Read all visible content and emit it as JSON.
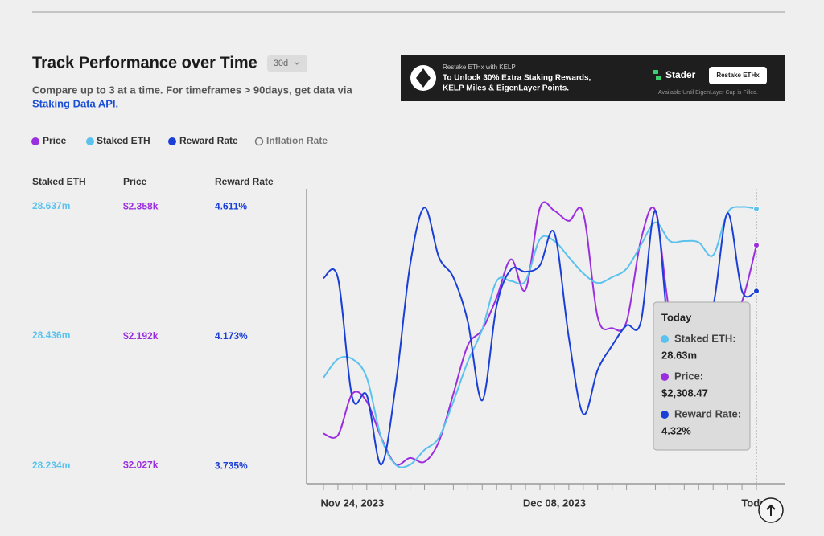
{
  "header": {
    "title": "Track Performance over Time",
    "timeframe": "30d",
    "subtitle": "Compare up to 3 at a time. For timeframes > 90days, get data via",
    "link": "Staking Data API."
  },
  "banner": {
    "small": "Restake ETHx with KELP",
    "line1": "To Unlock 30% Extra Staking Rewards,",
    "line2": "KELP Miles & EigenLayer Points.",
    "brand": "Stader",
    "button": "Restake ETHx",
    "note": "Available Until EigenLayer Cap is Filled."
  },
  "legend": {
    "inactive": "Inflation Rate"
  },
  "tooltip": {
    "title": "Today",
    "items": [
      {
        "label": "Staked ETH:",
        "value": "28.63m"
      },
      {
        "label": "Price:",
        "value": "$2,308.47"
      },
      {
        "label": "Reward Rate:",
        "value": "4.32%"
      }
    ]
  },
  "chart_data": {
    "type": "line",
    "categories": [
      null,
      null,
      "Nov 24, 2023",
      null,
      null,
      null,
      null,
      null,
      null,
      null,
      null,
      null,
      null,
      null,
      null,
      null,
      "Dec 08, 2023",
      null,
      null,
      null,
      null,
      null,
      null,
      null,
      null,
      null,
      null,
      null,
      null,
      null,
      "Today"
    ],
    "series": [
      {
        "name": "Price",
        "color": "#9b2fe0",
        "ylim": [
          2.006,
          2.381
        ],
        "yticks": [
          {
            "value": 2.358,
            "label": "$2.358k"
          },
          {
            "value": 2.192,
            "label": "$2.192k"
          },
          {
            "value": 2.027,
            "label": "$2.027k"
          }
        ],
        "values": [
          2.068,
          2.066,
          2.119,
          2.109,
          2.063,
          2.029,
          2.037,
          2.032,
          2.058,
          2.119,
          2.181,
          2.201,
          2.242,
          2.291,
          2.252,
          2.357,
          2.353,
          2.34,
          2.35,
          2.217,
          2.203,
          2.211,
          2.316,
          2.353,
          2.222,
          2.211,
          2.211,
          2.217,
          2.211,
          2.237,
          2.309
        ]
      },
      {
        "name": "Staked ETH",
        "color": "#5bc2ee",
        "ylim": [
          28.209,
          28.664
        ],
        "yticks": [
          {
            "value": 28.637,
            "label": "28.637m"
          },
          {
            "value": 28.436,
            "label": "28.436m"
          },
          {
            "value": 28.234,
            "label": "28.234m"
          }
        ],
        "values": [
          28.371,
          28.4,
          28.4,
          28.371,
          28.278,
          28.236,
          28.236,
          28.259,
          28.278,
          28.334,
          28.396,
          28.446,
          28.521,
          28.521,
          28.521,
          28.586,
          28.583,
          28.558,
          28.533,
          28.518,
          28.527,
          28.54,
          28.577,
          28.612,
          28.583,
          28.583,
          28.581,
          28.561,
          28.627,
          28.636,
          28.633
        ]
      },
      {
        "name": "Reward Rate",
        "color": "#1a3fd6",
        "ylim": [
          3.681,
          4.671
        ],
        "yticks": [
          {
            "value": 4.611,
            "label": "4.611%"
          },
          {
            "value": 4.173,
            "label": "4.173%"
          },
          {
            "value": 3.735,
            "label": "3.735%"
          }
        ],
        "values": [
          4.37,
          4.37,
          3.966,
          3.974,
          3.74,
          4.006,
          4.413,
          4.608,
          4.44,
          4.372,
          4.223,
          3.957,
          4.277,
          4.399,
          4.391,
          4.413,
          4.522,
          4.169,
          3.911,
          4.06,
          4.142,
          4.21,
          4.223,
          4.597,
          4.169,
          4.223,
          4.25,
          4.277,
          4.589,
          4.326,
          4.326
        ]
      }
    ]
  }
}
